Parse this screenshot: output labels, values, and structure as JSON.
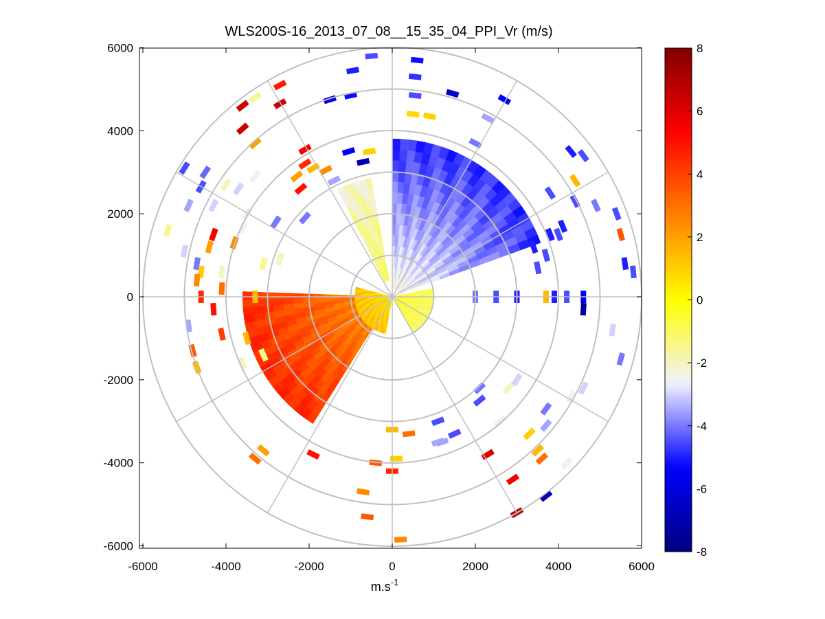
{
  "chart_data": {
    "type": "heatmap",
    "subtype": "polar-ppi-scan",
    "title": "WLS200S-16_2013_07_08__15_35_04_PPI_Vr (m/s)",
    "xlabel_base": "m.s",
    "xlabel_sup": "-1",
    "ylabel": "",
    "xlim": [
      -6000,
      6000
    ],
    "ylim": [
      -6000,
      6000
    ],
    "xticks": [
      -6000,
      -4000,
      -2000,
      0,
      2000,
      4000,
      6000
    ],
    "yticks": [
      6000,
      4000,
      2000,
      0,
      -2000,
      -4000,
      -6000
    ],
    "polar_grid": {
      "ring_radii_m": [
        1000,
        2000,
        3000,
        4000,
        5000,
        6000
      ],
      "spoke_angles_deg": [
        0,
        30,
        60,
        90,
        120,
        150,
        180,
        210,
        240,
        270,
        300,
        330
      ]
    },
    "colorbar": {
      "min": -8,
      "max": 8,
      "ticks": [
        8,
        6,
        4,
        2,
        0,
        -2,
        -4,
        -6,
        -8
      ],
      "colormap": [
        "#00007f",
        "#0000ff",
        "#f0f0ff",
        "#ffff00",
        "#ff8000",
        "#ff0000",
        "#800000"
      ]
    },
    "sectors": [
      {
        "name": "approaching-NE-sector",
        "az_start_deg": 0,
        "az_end_deg": 70,
        "r_min_m": 200,
        "r_max_m": 3800,
        "value_ms": -4.5
      },
      {
        "name": "receding-WSW-sector",
        "az_start_deg": 212,
        "az_end_deg": 272,
        "r_min_m": 200,
        "r_max_m": 3600,
        "value_ms": 4.2
      },
      {
        "name": "weak-NNW-sector",
        "az_start_deg": 333,
        "az_end_deg": 350,
        "r_min_m": 400,
        "r_max_m": 2900,
        "value_ms": -2.0
      },
      {
        "name": "near-zero-east-sector",
        "az_start_deg": 78,
        "az_end_deg": 150,
        "r_min_m": 100,
        "r_max_m": 1000,
        "value_ms": -1.0
      },
      {
        "name": "near-range-yellow-sector",
        "az_start_deg": 190,
        "az_end_deg": 285,
        "r_min_m": 100,
        "r_max_m": 900,
        "value_ms": 1.2
      }
    ],
    "scatter_cells": [
      {
        "x": -500,
        "y": 5800,
        "v": -4.5
      },
      {
        "x": -950,
        "y": 5450,
        "v": -5.0
      },
      {
        "x": 600,
        "y": 5700,
        "v": -5.2
      },
      {
        "x": 550,
        "y": 5300,
        "v": -4.8
      },
      {
        "x": -1000,
        "y": 4850,
        "v": -5.2
      },
      {
        "x": 550,
        "y": 4850,
        "v": -4.5
      },
      {
        "x": -1500,
        "y": 4750,
        "v": -6.0
      },
      {
        "x": 1450,
        "y": 4900,
        "v": -6.5
      },
      {
        "x": 2700,
        "y": 4750,
        "v": -5.5
      },
      {
        "x": -2700,
        "y": 5100,
        "v": 4.8
      },
      {
        "x": -3300,
        "y": 4800,
        "v": -1.5
      },
      {
        "x": -3600,
        "y": 4600,
        "v": 6.3
      },
      {
        "x": -2700,
        "y": 4650,
        "v": 6.5
      },
      {
        "x": -3600,
        "y": 4050,
        "v": 6.5
      },
      {
        "x": -3300,
        "y": 3700,
        "v": 2.0
      },
      {
        "x": -2100,
        "y": 3550,
        "v": 5.5
      },
      {
        "x": -1050,
        "y": 3500,
        "v": -5.5
      },
      {
        "x": -550,
        "y": 3500,
        "v": 1.0
      },
      {
        "x": -700,
        "y": 3250,
        "v": -7.0
      },
      {
        "x": -2100,
        "y": 3200,
        "v": 4.5
      },
      {
        "x": -1900,
        "y": 3100,
        "v": 1.5
      },
      {
        "x": -1600,
        "y": 3050,
        "v": 2.5
      },
      {
        "x": -2300,
        "y": 2900,
        "v": 2.0
      },
      {
        "x": -1400,
        "y": 2800,
        "v": -3.5
      },
      {
        "x": -2200,
        "y": 2600,
        "v": 5.0
      },
      {
        "x": -4500,
        "y": 3000,
        "v": -4.2
      },
      {
        "x": -4600,
        "y": 2650,
        "v": -4.5
      },
      {
        "x": -5000,
        "y": 3100,
        "v": -4.5
      },
      {
        "x": -3300,
        "y": 2900,
        "v": -2.5
      },
      {
        "x": -4000,
        "y": 2700,
        "v": -2.0
      },
      {
        "x": -3700,
        "y": 2600,
        "v": -3.0
      },
      {
        "x": -4300,
        "y": 2200,
        "v": -3.0
      },
      {
        "x": -4900,
        "y": 2200,
        "v": -3.5
      },
      {
        "x": -3500,
        "y": 2000,
        "v": -2.5
      },
      {
        "x": -3600,
        "y": 1650,
        "v": -2.5
      },
      {
        "x": -2800,
        "y": 1800,
        "v": -4.0
      },
      {
        "x": -2100,
        "y": 1900,
        "v": -4.0
      },
      {
        "x": -4300,
        "y": 1500,
        "v": 5.5
      },
      {
        "x": -3800,
        "y": 1300,
        "v": 2.5
      },
      {
        "x": -4400,
        "y": 1200,
        "v": 2.0
      },
      {
        "x": -5400,
        "y": 1600,
        "v": -1.5
      },
      {
        "x": -5000,
        "y": 1100,
        "v": -3.0
      },
      {
        "x": -4700,
        "y": 800,
        "v": -4.0
      },
      {
        "x": -4600,
        "y": 600,
        "v": 1.0
      },
      {
        "x": -4700,
        "y": 400,
        "v": 2.5
      },
      {
        "x": -4100,
        "y": 600,
        "v": -2.0
      },
      {
        "x": -4100,
        "y": 200,
        "v": 3.0
      },
      {
        "x": -3100,
        "y": 800,
        "v": -1.5
      },
      {
        "x": -2700,
        "y": 900,
        "v": -2.0
      },
      {
        "x": -3300,
        "y": 0,
        "v": 1.5
      },
      {
        "x": -4600,
        "y": 0,
        "v": 4.5
      },
      {
        "x": -4300,
        "y": -300,
        "v": 5.0
      },
      {
        "x": -4100,
        "y": -900,
        "v": 4.0
      },
      {
        "x": -4900,
        "y": -700,
        "v": -3.5
      },
      {
        "x": -4800,
        "y": -1300,
        "v": 3.5
      },
      {
        "x": -4700,
        "y": -1700,
        "v": 1.5
      },
      {
        "x": -3600,
        "y": -1600,
        "v": -2.0
      },
      {
        "x": -3500,
        "y": -1000,
        "v": 1.5
      },
      {
        "x": -3100,
        "y": -1400,
        "v": -1.5
      },
      {
        "x": -3300,
        "y": -3900,
        "v": 3.0
      },
      {
        "x": -3100,
        "y": -3700,
        "v": 2.0
      },
      {
        "x": -1900,
        "y": -3800,
        "v": 5.0
      },
      {
        "x": -400,
        "y": -4000,
        "v": 3.5
      },
      {
        "x": 0,
        "y": -4200,
        "v": 4.5
      },
      {
        "x": -700,
        "y": -4700,
        "v": 2.5
      },
      {
        "x": -600,
        "y": -5300,
        "v": 3.5
      },
      {
        "x": 200,
        "y": -5850,
        "v": 2.5
      },
      {
        "x": 0,
        "y": -3200,
        "v": 1.5
      },
      {
        "x": 100,
        "y": -3900,
        "v": 1.0
      },
      {
        "x": 400,
        "y": -3300,
        "v": 3.0
      },
      {
        "x": 1100,
        "y": -3000,
        "v": -4.5
      },
      {
        "x": 1200,
        "y": -3500,
        "v": -3.5
      },
      {
        "x": 1500,
        "y": -3300,
        "v": -4.5
      },
      {
        "x": 1100,
        "y": -3500,
        "v": -3.5
      },
      {
        "x": 2100,
        "y": -2500,
        "v": -4.5
      },
      {
        "x": 2100,
        "y": -2200,
        "v": -4.0
      },
      {
        "x": 2800,
        "y": -2200,
        "v": -2.0
      },
      {
        "x": 3000,
        "y": -2000,
        "v": -3.0
      },
      {
        "x": 2600,
        "y": -3000,
        "v": -2.5
      },
      {
        "x": 3300,
        "y": -3300,
        "v": 1.0
      },
      {
        "x": 3500,
        "y": -3700,
        "v": 1.5
      },
      {
        "x": 3600,
        "y": -3900,
        "v": 3.0
      },
      {
        "x": 3700,
        "y": -2700,
        "v": -4.0
      },
      {
        "x": 3700,
        "y": -3100,
        "v": -3.5
      },
      {
        "x": 4200,
        "y": -4000,
        "v": -2.5
      },
      {
        "x": 4600,
        "y": -2200,
        "v": -3.0
      },
      {
        "x": 4300,
        "y": -2400,
        "v": -2.5
      },
      {
        "x": 2300,
        "y": -3800,
        "v": 6.0
      },
      {
        "x": 2900,
        "y": -4400,
        "v": 5.5
      },
      {
        "x": 3000,
        "y": -5200,
        "v": 7.0
      },
      {
        "x": 3700,
        "y": -4800,
        "v": -7.0
      },
      {
        "x": 5500,
        "y": -1500,
        "v": -4.0
      },
      {
        "x": 5300,
        "y": -800,
        "v": -3.0
      },
      {
        "x": 4600,
        "y": 0,
        "v": -5.5
      },
      {
        "x": 4200,
        "y": 0,
        "v": -4.5
      },
      {
        "x": 3900,
        "y": 0,
        "v": -5.0
      },
      {
        "x": 3700,
        "y": 0,
        "v": 1.5
      },
      {
        "x": 3000,
        "y": 0,
        "v": -5.0
      },
      {
        "x": 2500,
        "y": 0,
        "v": -4.5
      },
      {
        "x": 2000,
        "y": 0,
        "v": -4.0
      },
      {
        "x": 4600,
        "y": -300,
        "v": -7.5
      },
      {
        "x": 5600,
        "y": 800,
        "v": -5.0
      },
      {
        "x": 5800,
        "y": 600,
        "v": -4.5
      },
      {
        "x": 5500,
        "y": 1500,
        "v": 3.5
      },
      {
        "x": 5400,
        "y": 2000,
        "v": -4.5
      },
      {
        "x": 4900,
        "y": 2200,
        "v": -4.0
      },
      {
        "x": 4400,
        "y": 2300,
        "v": -4.5
      },
      {
        "x": 4100,
        "y": 1700,
        "v": -5.0
      },
      {
        "x": 4000,
        "y": 1500,
        "v": -4.5
      },
      {
        "x": 3800,
        "y": 1500,
        "v": -5.0
      },
      {
        "x": 3700,
        "y": 1000,
        "v": -4.5
      },
      {
        "x": 3500,
        "y": 700,
        "v": -4.5
      },
      {
        "x": 3400,
        "y": 1200,
        "v": -5.0
      },
      {
        "x": 4300,
        "y": 3500,
        "v": -5.0
      },
      {
        "x": 4600,
        "y": 3400,
        "v": -4.5
      },
      {
        "x": 4400,
        "y": 2800,
        "v": 1.5
      },
      {
        "x": 3800,
        "y": 2500,
        "v": -4.5
      },
      {
        "x": 2300,
        "y": 4300,
        "v": -3.5
      },
      {
        "x": 2000,
        "y": 3700,
        "v": -4.0
      },
      {
        "x": 900,
        "y": 4350,
        "v": 1.0
      },
      {
        "x": 500,
        "y": 4400,
        "v": 0.8
      }
    ]
  }
}
